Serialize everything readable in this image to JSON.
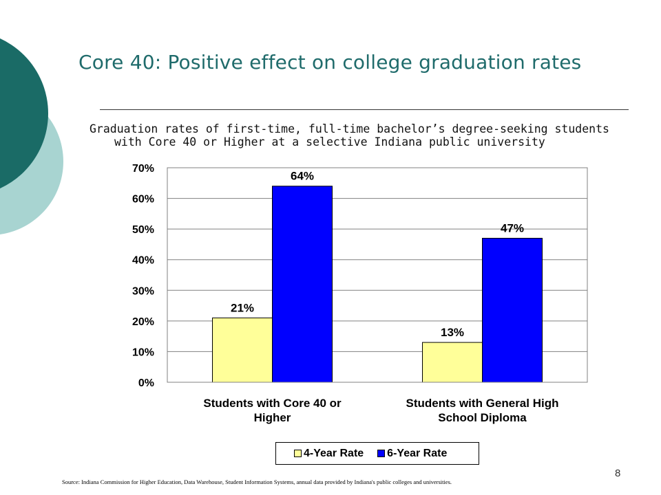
{
  "slide": {
    "title": "Core 40:  Positive effect on college graduation rates",
    "subtitle_line1": "Graduation rates of first-time, full-time bachelor’s degree-seeking students",
    "subtitle_line2": "with Core 40 or Higher at a selective Indiana public university",
    "source": "Source:  Indiana Commission for Higher Education, Data Warehouse, Student Information Systems, annual data provided by Indiana's public colleges and universities.",
    "page_number": "8"
  },
  "colors": {
    "title": "#1f6b6b",
    "decor_dark": "#1a6b66",
    "decor_light": "#a8d4d1",
    "four_year": "#ffff99",
    "six_year": "#0000ff"
  },
  "chart_data": {
    "type": "bar",
    "categories": [
      "Students with Core 40 or Higher",
      "Students with General High School Diploma"
    ],
    "series": [
      {
        "name": "4-Year Rate",
        "values": [
          21,
          13
        ],
        "labels": [
          "21%",
          "13%"
        ]
      },
      {
        "name": "6-Year Rate",
        "values": [
          64,
          47
        ],
        "labels": [
          "64%",
          "47%"
        ]
      }
    ],
    "ylim": [
      0,
      70
    ],
    "yticks": [
      "0%",
      "10%",
      "20%",
      "30%",
      "40%",
      "50%",
      "60%",
      "70%"
    ],
    "grid": true,
    "legend": "bottom"
  }
}
